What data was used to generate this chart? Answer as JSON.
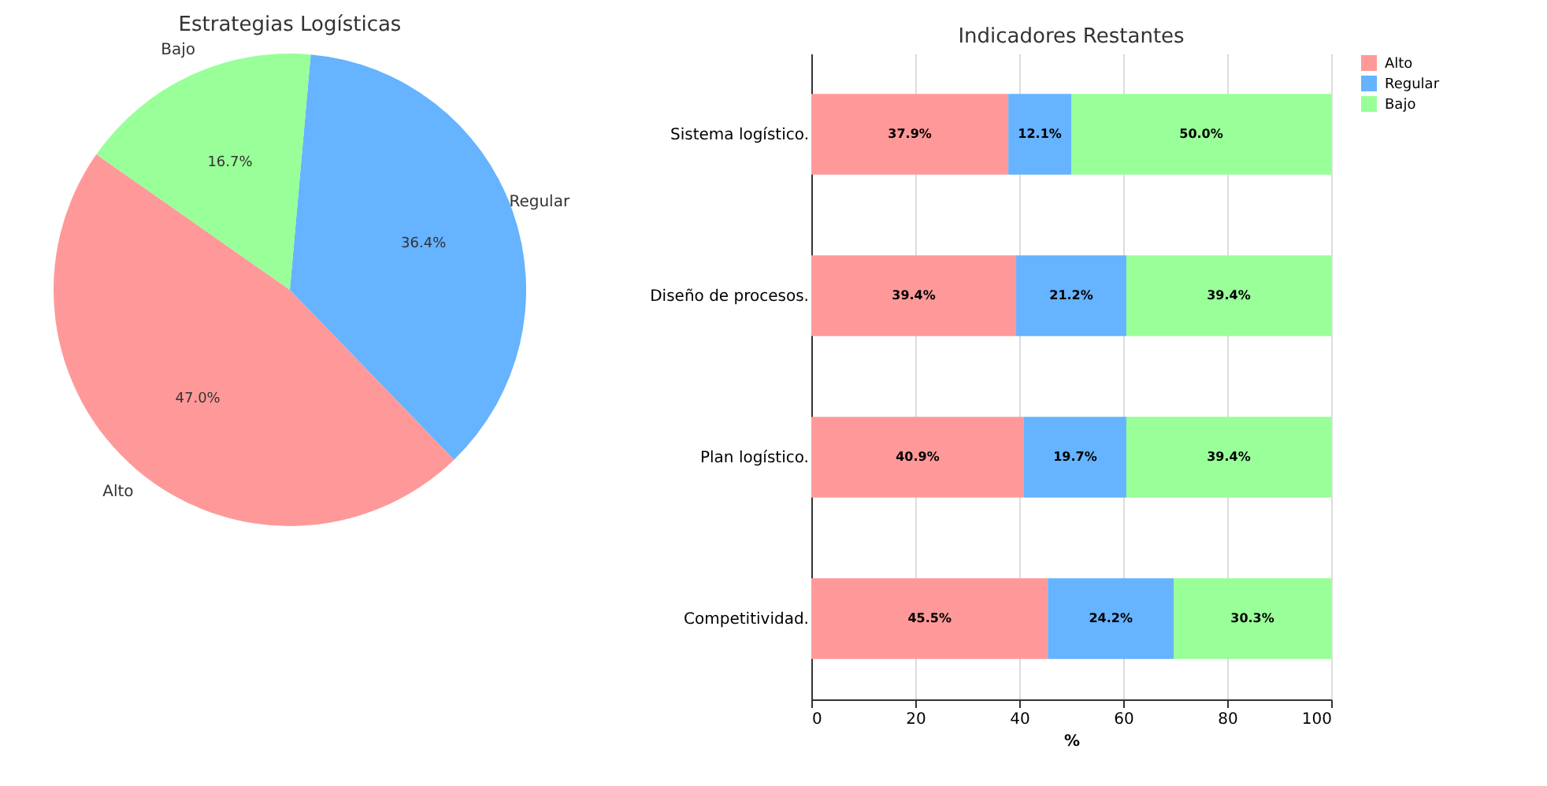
{
  "chart_data": [
    {
      "type": "pie",
      "title": "Estrategias Logísticas",
      "categories": [
        "Alto",
        "Regular",
        "Bajo"
      ],
      "values": [
        47.0,
        36.4,
        16.7
      ],
      "colors": [
        "#ff9999",
        "#66b3ff",
        "#99ff99"
      ],
      "value_labels": [
        "47.0%",
        "36.4%",
        "16.7%"
      ],
      "legend": false
    },
    {
      "type": "bar",
      "title": "Indicadores Restantes",
      "orientation": "horizontal",
      "stacked": true,
      "xlabel": "%",
      "categories": [
        "Sistema logístico.",
        "Diseño de procesos.",
        "Plan logístico.",
        "Competitividad."
      ],
      "series": [
        {
          "name": "Alto",
          "color": "#ff9999",
          "values": [
            37.9,
            39.4,
            40.9,
            45.5
          ],
          "value_labels": [
            "37.9%",
            "39.4%",
            "40.9%",
            "45.5%"
          ]
        },
        {
          "name": "Regular",
          "color": "#66b3ff",
          "values": [
            12.1,
            21.2,
            19.7,
            24.2
          ],
          "value_labels": [
            "12.1%",
            "21.2%",
            "19.7%",
            "24.2%"
          ]
        },
        {
          "name": "Bajo",
          "color": "#99ff99",
          "values": [
            50.0,
            39.4,
            39.4,
            30.3
          ],
          "value_labels": [
            "50.0%",
            "39.4%",
            "39.4%",
            "30.3%"
          ]
        }
      ],
      "xlim": [
        0,
        100
      ],
      "xticks": [
        0,
        20,
        40,
        60,
        80,
        100
      ],
      "grid": "x",
      "legend": "right"
    }
  ]
}
